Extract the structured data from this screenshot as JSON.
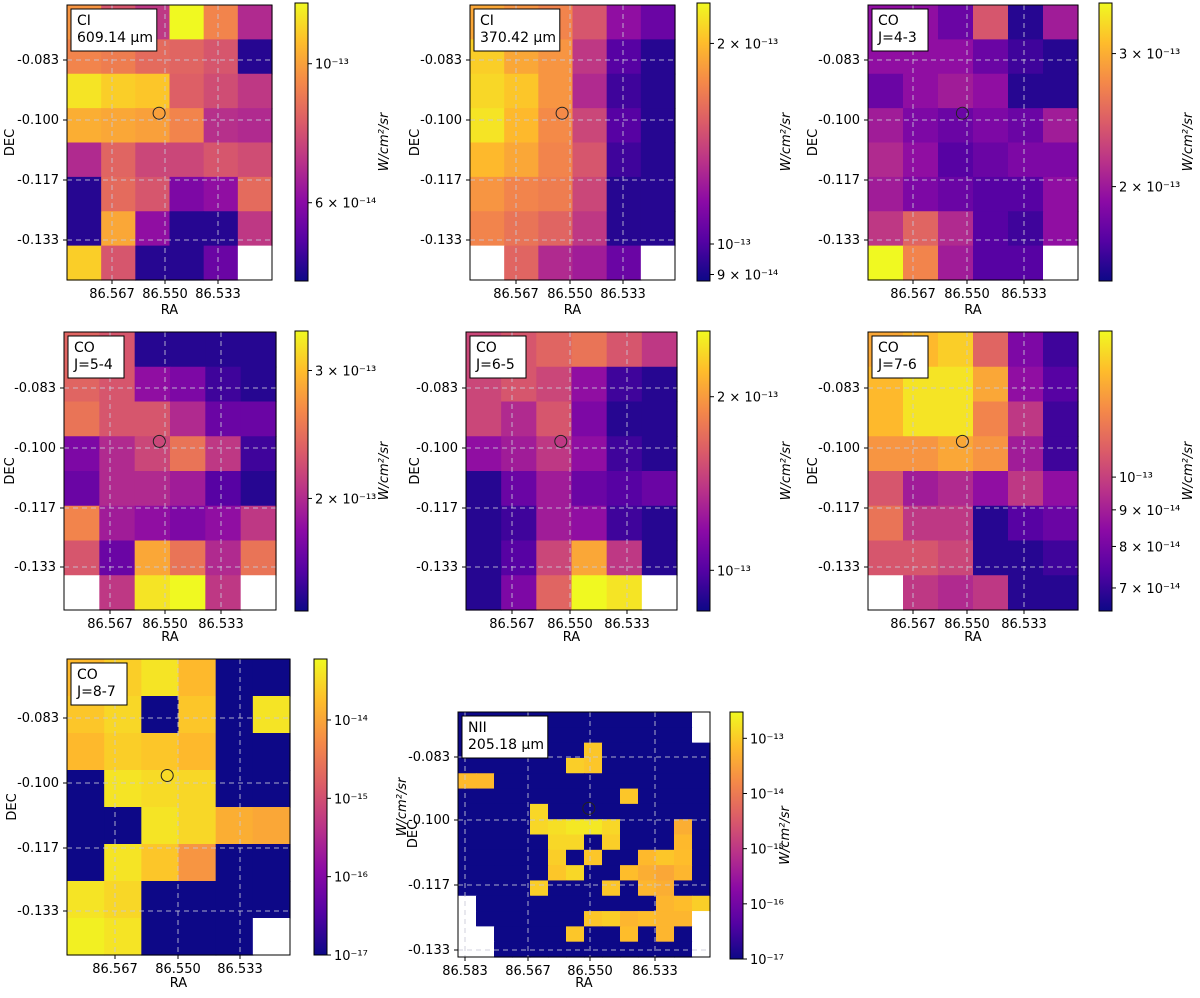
{
  "chart_data": [
    {
      "type": "heatmap",
      "annotation": [
        "CI",
        "609.14 μm"
      ],
      "xlabel": "RA",
      "ylabel": "DEC",
      "x_ticks": [
        "86.567",
        "86.550",
        "86.533"
      ],
      "y_ticks": [
        "-0.083",
        "-0.100",
        "-0.117",
        "-0.133"
      ],
      "colorbar": {
        "label": "W/cm²/sr",
        "scale": "log",
        "range": [
          4.5e-14,
          1.25e-13
        ],
        "ticks": [
          {
            "value": 1e-13,
            "label": "10⁻¹³"
          },
          {
            "value": 6e-14,
            "label": "6 × 10⁻¹⁴"
          }
        ]
      },
      "values": [
        [
          0.75,
          0.55,
          0.45,
          1.0,
          0.7,
          0.4
        ],
        [
          0.7,
          0.68,
          0.62,
          0.6,
          0.55,
          0.05
        ],
        [
          0.95,
          0.9,
          0.88,
          0.58,
          0.52,
          0.45
        ],
        [
          0.82,
          0.8,
          0.78,
          0.7,
          0.42,
          0.4
        ],
        [
          0.4,
          0.6,
          0.5,
          0.5,
          0.55,
          0.52
        ],
        [
          0.05,
          0.62,
          0.55,
          0.25,
          0.3,
          0.62
        ],
        [
          0.05,
          0.8,
          0.3,
          0.05,
          0.05,
          0.45
        ],
        [
          0.9,
          0.55,
          0.05,
          0.05,
          0.2,
          null
        ]
      ],
      "marker": {
        "ra": 86.553,
        "dec": -0.1004
      }
    },
    {
      "type": "heatmap",
      "annotation": [
        "CI",
        "370.42 μm"
      ],
      "xlabel": "RA",
      "ylabel": "DEC",
      "x_ticks": [
        "86.567",
        "86.550",
        "86.533"
      ],
      "y_ticks": [
        "-0.083",
        "-0.100",
        "-0.117",
        "-0.133"
      ],
      "colorbar": {
        "label": "W/cm²/sr",
        "scale": "log",
        "range": [
          8.8e-14,
          2.3e-13
        ],
        "ticks": [
          {
            "value": 2e-13,
            "label": "2 × 10⁻¹³"
          },
          {
            "value": 1e-13,
            "label": "10⁻¹³"
          },
          {
            "value": 9e-14,
            "label": "9 × 10⁻¹⁴"
          }
        ]
      },
      "values": [
        [
          0.8,
          0.75,
          0.7,
          0.55,
          0.3,
          0.2
        ],
        [
          0.9,
          0.8,
          0.75,
          0.45,
          0.15,
          0.05
        ],
        [
          0.92,
          0.88,
          0.75,
          0.4,
          0.1,
          0.05
        ],
        [
          0.95,
          0.85,
          0.72,
          0.5,
          0.15,
          0.05
        ],
        [
          0.85,
          0.8,
          0.7,
          0.55,
          0.1,
          0.05
        ],
        [
          0.75,
          0.7,
          0.68,
          0.5,
          0.05,
          0.05
        ],
        [
          0.7,
          0.65,
          0.6,
          0.45,
          0.05,
          0.05
        ],
        [
          null,
          0.6,
          0.4,
          0.35,
          0.2,
          null
        ]
      ],
      "marker": {
        "ra": 86.553,
        "dec": -0.1004
      }
    },
    {
      "type": "heatmap",
      "annotation": [
        "CO",
        "J=4-3"
      ],
      "xlabel": "RA",
      "ylabel": "DEC",
      "x_ticks": [
        "86.567",
        "86.550",
        "86.533"
      ],
      "y_ticks": [
        "-0.083",
        "-0.100",
        "-0.117",
        "-0.133"
      ],
      "colorbar": {
        "label": "W/cm²/sr",
        "scale": "log",
        "range": [
          1.5e-13,
          3.5e-13
        ],
        "ticks": [
          {
            "value": 3e-13,
            "label": "3 × 10⁻¹³"
          },
          {
            "value": 2e-13,
            "label": "2 × 10⁻¹³"
          }
        ]
      },
      "values": [
        [
          0.3,
          0.3,
          0.2,
          0.55,
          0.05,
          0.35
        ],
        [
          0.3,
          0.3,
          0.3,
          0.2,
          0.1,
          0.05
        ],
        [
          0.2,
          0.3,
          0.35,
          0.3,
          0.05,
          0.05
        ],
        [
          0.35,
          0.25,
          0.2,
          0.25,
          0.2,
          0.35
        ],
        [
          0.4,
          0.3,
          0.15,
          0.2,
          0.25,
          0.25
        ],
        [
          0.35,
          0.25,
          0.2,
          0.15,
          0.15,
          0.3
        ],
        [
          0.45,
          0.6,
          0.4,
          0.15,
          0.1,
          0.3
        ],
        [
          1.0,
          0.7,
          0.35,
          0.15,
          0.15,
          null
        ]
      ],
      "marker": {
        "ra": 86.553,
        "dec": -0.1004
      }
    },
    {
      "type": "heatmap",
      "annotation": [
        "CO",
        "J=5-4"
      ],
      "xlabel": "RA",
      "ylabel": "DEC",
      "x_ticks": [
        "86.567",
        "86.550",
        "86.533"
      ],
      "y_ticks": [
        "-0.083",
        "-0.100",
        "-0.117",
        "-0.133"
      ],
      "colorbar": {
        "label": "W/cm²/sr",
        "scale": "log",
        "range": [
          1.4e-13,
          3.4e-13
        ],
        "ticks": [
          {
            "value": 3e-13,
            "label": "3 × 10⁻¹³"
          },
          {
            "value": 2e-13,
            "label": "2 × 10⁻¹³"
          }
        ]
      },
      "values": [
        [
          0.6,
          0.55,
          0.05,
          0.05,
          0.05,
          0.05
        ],
        [
          0.6,
          0.55,
          0.3,
          0.25,
          0.1,
          0.05
        ],
        [
          0.65,
          0.55,
          0.55,
          0.4,
          0.2,
          0.2
        ],
        [
          0.25,
          0.4,
          0.5,
          0.65,
          0.45,
          0.1
        ],
        [
          0.2,
          0.4,
          0.4,
          0.35,
          0.15,
          0.05
        ],
        [
          0.7,
          0.35,
          0.3,
          0.25,
          0.3,
          0.45
        ],
        [
          0.55,
          0.2,
          0.8,
          0.65,
          0.4,
          0.65
        ],
        [
          null,
          0.45,
          0.95,
          1.0,
          0.45,
          null
        ]
      ],
      "marker": {
        "ra": 86.553,
        "dec": -0.1004
      }
    },
    {
      "type": "heatmap",
      "annotation": [
        "CO",
        "J=6-5"
      ],
      "xlabel": "RA",
      "ylabel": "DEC",
      "x_ticks": [
        "86.567",
        "86.550",
        "86.533"
      ],
      "y_ticks": [
        "-0.083",
        "-0.100",
        "-0.117",
        "-0.133"
      ],
      "colorbar": {
        "label": "W/cm²/sr",
        "scale": "log",
        "range": [
          8.5e-14,
          2.6e-13
        ],
        "ticks": [
          {
            "value": 2e-13,
            "label": "2 × 10⁻¹³"
          },
          {
            "value": 1e-13,
            "label": "10⁻¹³"
          }
        ]
      },
      "values": [
        [
          0.5,
          0.55,
          0.6,
          0.65,
          0.55,
          0.45
        ],
        [
          0.5,
          0.55,
          0.5,
          0.3,
          0.1,
          0.05
        ],
        [
          0.5,
          0.4,
          0.55,
          0.25,
          0.05,
          0.05
        ],
        [
          0.3,
          0.35,
          0.45,
          0.3,
          0.1,
          0.05
        ],
        [
          0.05,
          0.2,
          0.35,
          0.2,
          0.15,
          0.2
        ],
        [
          0.05,
          0.1,
          0.35,
          0.3,
          0.1,
          0.05
        ],
        [
          0.05,
          0.15,
          0.5,
          0.8,
          0.45,
          0.05
        ],
        [
          0.05,
          0.25,
          0.6,
          1.0,
          0.95,
          null
        ]
      ],
      "marker": {
        "ra": 86.553,
        "dec": -0.1004
      }
    },
    {
      "type": "heatmap",
      "annotation": [
        "CO",
        "J=7-6"
      ],
      "xlabel": "RA",
      "ylabel": "DEC",
      "x_ticks": [
        "86.567",
        "86.550",
        "86.533"
      ],
      "y_ticks": [
        "-0.083",
        "-0.100",
        "-0.117",
        "-0.133"
      ],
      "colorbar": {
        "label": "W/cm²/sr",
        "scale": "log",
        "range": [
          6.5e-14,
          1.6e-13
        ],
        "ticks": [
          {
            "value": 1e-13,
            "label": "10⁻¹³"
          },
          {
            "value": 9e-14,
            "label": "9 × 10⁻¹⁴"
          },
          {
            "value": 8e-14,
            "label": "8 × 10⁻¹⁴"
          },
          {
            "value": 7e-14,
            "label": "7 × 10⁻¹⁴"
          }
        ]
      },
      "values": [
        [
          0.8,
          0.85,
          0.9,
          0.6,
          0.25,
          0.1
        ],
        [
          0.85,
          0.95,
          0.95,
          0.8,
          0.3,
          0.15
        ],
        [
          0.85,
          0.95,
          0.95,
          0.7,
          0.45,
          0.1
        ],
        [
          0.75,
          0.75,
          0.8,
          0.75,
          0.35,
          0.1
        ],
        [
          0.55,
          0.35,
          0.4,
          0.3,
          0.45,
          0.3
        ],
        [
          0.65,
          0.45,
          0.45,
          0.05,
          0.15,
          0.2
        ],
        [
          0.55,
          0.55,
          0.5,
          0.05,
          0.05,
          0.1
        ],
        [
          null,
          0.45,
          0.4,
          0.45,
          0.05,
          0.05
        ]
      ],
      "marker": {
        "ra": 86.553,
        "dec": -0.1004
      }
    },
    {
      "type": "heatmap",
      "annotation": [
        "CO",
        "J=8-7"
      ],
      "xlabel": "RA",
      "ylabel": "DEC",
      "x_ticks": [
        "86.567",
        "86.550",
        "86.533"
      ],
      "y_ticks": [
        "-0.083",
        "-0.100",
        "-0.117",
        "-0.133"
      ],
      "colorbar": {
        "label": "W/cm²/sr",
        "scale": "log",
        "range": [
          1e-17,
          6e-14
        ],
        "ticks": [
          {
            "value": 1e-14,
            "label": "10⁻¹⁴"
          },
          {
            "value": 1e-15,
            "label": "10⁻¹⁵"
          },
          {
            "value": 1e-16,
            "label": "10⁻¹⁶"
          },
          {
            "value": 1e-17,
            "label": "10⁻¹⁷"
          }
        ]
      },
      "values": [
        [
          0.85,
          0.9,
          0.95,
          0.85,
          0.0,
          0.0
        ],
        [
          0.88,
          0.92,
          0.0,
          0.88,
          0.0,
          0.95
        ],
        [
          0.85,
          0.9,
          0.88,
          0.85,
          0.0,
          0.0
        ],
        [
          0.0,
          0.95,
          0.93,
          0.92,
          0.0,
          0.0
        ],
        [
          0.0,
          0.0,
          0.95,
          0.92,
          0.82,
          0.8
        ],
        [
          0.0,
          0.95,
          0.88,
          0.75,
          0.0,
          0.0
        ],
        [
          0.95,
          0.92,
          0.0,
          0.0,
          0.0,
          0.0
        ],
        [
          0.98,
          0.95,
          0.0,
          0.0,
          0.0,
          null
        ]
      ],
      "marker": {
        "ra": 86.553,
        "dec": -0.1004
      }
    },
    {
      "type": "heatmap",
      "annotation": [
        "NII",
        "205.18 μm"
      ],
      "xlabel": "RA",
      "ylabel": "DEC",
      "x_ticks": [
        "86.583",
        "86.567",
        "86.550",
        "86.533"
      ],
      "y_ticks": [
        "-0.083",
        "-0.100",
        "-0.117",
        "-0.133"
      ],
      "colorbar": {
        "label": "W/cm²/sr",
        "scale": "log",
        "range": [
          1e-17,
          3e-13
        ],
        "ticks": [
          {
            "value": 1e-13,
            "label": "10⁻¹³"
          },
          {
            "value": 1e-14,
            "label": "10⁻¹⁴"
          },
          {
            "value": 1e-15,
            "label": "10⁻¹⁵"
          },
          {
            "value": 1e-16,
            "label": "10⁻¹⁶"
          },
          {
            "value": 1e-17,
            "label": "10⁻¹⁷"
          }
        ]
      },
      "values": [
        [
          0,
          0,
          0,
          0,
          0,
          0,
          0,
          0,
          0,
          0,
          0,
          0,
          0,
          null
        ],
        [
          0,
          0,
          0,
          0,
          0,
          0,
          0,
          0,
          0,
          0,
          0,
          0,
          0,
          null
        ],
        [
          0,
          0,
          0,
          0,
          0,
          0,
          0,
          0.88,
          0,
          0,
          0,
          0,
          0,
          0
        ],
        [
          0,
          0,
          0,
          0,
          0,
          0,
          0.9,
          0.88,
          0,
          0,
          0,
          0,
          0,
          0
        ],
        [
          0.85,
          0.85,
          0,
          0,
          0,
          0,
          0,
          0,
          0,
          0,
          0,
          0,
          0,
          0
        ],
        [
          0,
          0,
          0,
          0,
          0,
          0,
          0,
          0,
          0,
          0.88,
          0,
          0,
          0,
          0
        ],
        [
          0,
          0,
          0,
          0,
          0.92,
          0,
          0,
          0,
          0,
          0,
          0,
          0,
          0,
          0
        ],
        [
          0,
          0,
          0,
          0,
          0.92,
          0.94,
          0.96,
          0.96,
          0.92,
          0,
          0,
          0,
          0.82,
          0
        ],
        [
          0,
          0,
          0,
          0,
          0,
          0.92,
          0.92,
          0,
          0.9,
          0,
          0,
          0,
          0.85,
          0
        ],
        [
          0,
          0,
          0,
          0,
          0,
          0.9,
          0,
          0.88,
          0,
          0,
          0.85,
          0.88,
          0.86,
          0
        ],
        [
          0,
          0,
          0,
          0,
          0,
          0.88,
          0.92,
          0,
          0,
          0.86,
          0.82,
          0.8,
          0.84,
          0
        ],
        [
          0,
          0,
          0,
          0,
          0.9,
          0,
          0,
          0,
          0.88,
          0,
          0.84,
          0.82,
          0,
          0
        ],
        [
          null,
          0,
          0,
          0,
          0,
          0,
          0,
          0,
          0,
          0,
          0,
          0.84,
          0.86,
          0.9
        ],
        [
          null,
          0,
          0,
          0,
          0,
          0,
          0,
          0.88,
          0.9,
          0.84,
          0.86,
          0.84,
          0.84,
          null
        ],
        [
          null,
          null,
          0,
          0,
          0,
          0,
          0.88,
          0,
          0,
          0.86,
          0,
          0.84,
          0,
          null
        ],
        [
          null,
          null,
          0,
          0,
          0,
          0,
          0,
          0,
          0,
          0,
          0,
          0,
          0,
          null
        ]
      ],
      "marker": {
        "ra": 86.553,
        "dec": -0.1004
      }
    }
  ]
}
